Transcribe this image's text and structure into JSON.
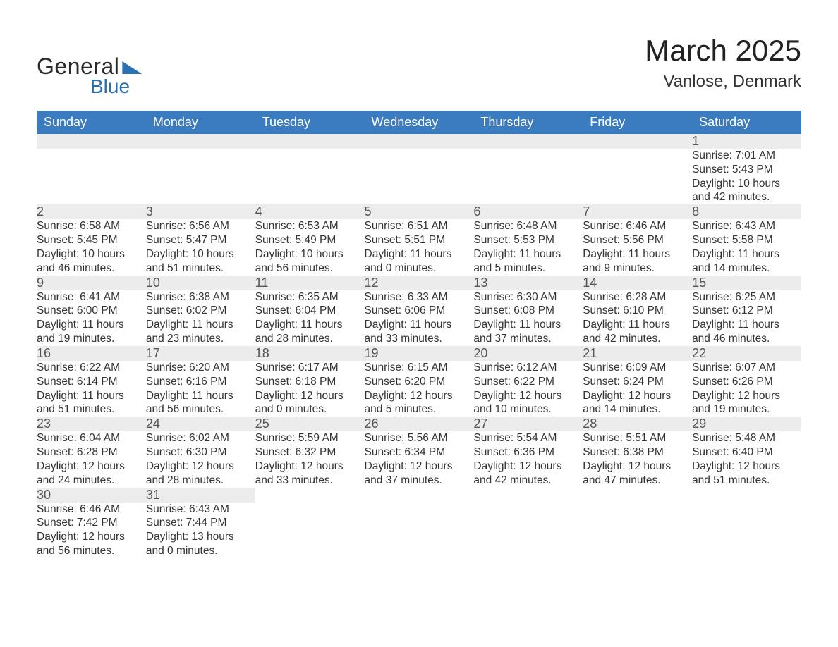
{
  "logo": {
    "word1": "General",
    "word2": "Blue"
  },
  "title": "March 2025",
  "location": "Vanlose, Denmark",
  "columns": [
    "Sunday",
    "Monday",
    "Tuesday",
    "Wednesday",
    "Thursday",
    "Friday",
    "Saturday"
  ],
  "header_bg": "#3b7bbf",
  "header_fg": "#ffffff",
  "daynum_bg": "#ececec",
  "border_color": "#3b7bbf",
  "weeks": [
    [
      null,
      null,
      null,
      null,
      null,
      null,
      {
        "n": "1",
        "sunrise": "7:01 AM",
        "sunset": "5:43 PM",
        "dayh": "10",
        "daym": "42"
      }
    ],
    [
      {
        "n": "2",
        "sunrise": "6:58 AM",
        "sunset": "5:45 PM",
        "dayh": "10",
        "daym": "46"
      },
      {
        "n": "3",
        "sunrise": "6:56 AM",
        "sunset": "5:47 PM",
        "dayh": "10",
        "daym": "51"
      },
      {
        "n": "4",
        "sunrise": "6:53 AM",
        "sunset": "5:49 PM",
        "dayh": "10",
        "daym": "56"
      },
      {
        "n": "5",
        "sunrise": "6:51 AM",
        "sunset": "5:51 PM",
        "dayh": "11",
        "daym": "0"
      },
      {
        "n": "6",
        "sunrise": "6:48 AM",
        "sunset": "5:53 PM",
        "dayh": "11",
        "daym": "5"
      },
      {
        "n": "7",
        "sunrise": "6:46 AM",
        "sunset": "5:56 PM",
        "dayh": "11",
        "daym": "9"
      },
      {
        "n": "8",
        "sunrise": "6:43 AM",
        "sunset": "5:58 PM",
        "dayh": "11",
        "daym": "14"
      }
    ],
    [
      {
        "n": "9",
        "sunrise": "6:41 AM",
        "sunset": "6:00 PM",
        "dayh": "11",
        "daym": "19"
      },
      {
        "n": "10",
        "sunrise": "6:38 AM",
        "sunset": "6:02 PM",
        "dayh": "11",
        "daym": "23"
      },
      {
        "n": "11",
        "sunrise": "6:35 AM",
        "sunset": "6:04 PM",
        "dayh": "11",
        "daym": "28"
      },
      {
        "n": "12",
        "sunrise": "6:33 AM",
        "sunset": "6:06 PM",
        "dayh": "11",
        "daym": "33"
      },
      {
        "n": "13",
        "sunrise": "6:30 AM",
        "sunset": "6:08 PM",
        "dayh": "11",
        "daym": "37"
      },
      {
        "n": "14",
        "sunrise": "6:28 AM",
        "sunset": "6:10 PM",
        "dayh": "11",
        "daym": "42"
      },
      {
        "n": "15",
        "sunrise": "6:25 AM",
        "sunset": "6:12 PM",
        "dayh": "11",
        "daym": "46"
      }
    ],
    [
      {
        "n": "16",
        "sunrise": "6:22 AM",
        "sunset": "6:14 PM",
        "dayh": "11",
        "daym": "51"
      },
      {
        "n": "17",
        "sunrise": "6:20 AM",
        "sunset": "6:16 PM",
        "dayh": "11",
        "daym": "56"
      },
      {
        "n": "18",
        "sunrise": "6:17 AM",
        "sunset": "6:18 PM",
        "dayh": "12",
        "daym": "0"
      },
      {
        "n": "19",
        "sunrise": "6:15 AM",
        "sunset": "6:20 PM",
        "dayh": "12",
        "daym": "5"
      },
      {
        "n": "20",
        "sunrise": "6:12 AM",
        "sunset": "6:22 PM",
        "dayh": "12",
        "daym": "10"
      },
      {
        "n": "21",
        "sunrise": "6:09 AM",
        "sunset": "6:24 PM",
        "dayh": "12",
        "daym": "14"
      },
      {
        "n": "22",
        "sunrise": "6:07 AM",
        "sunset": "6:26 PM",
        "dayh": "12",
        "daym": "19"
      }
    ],
    [
      {
        "n": "23",
        "sunrise": "6:04 AM",
        "sunset": "6:28 PM",
        "dayh": "12",
        "daym": "24"
      },
      {
        "n": "24",
        "sunrise": "6:02 AM",
        "sunset": "6:30 PM",
        "dayh": "12",
        "daym": "28"
      },
      {
        "n": "25",
        "sunrise": "5:59 AM",
        "sunset": "6:32 PM",
        "dayh": "12",
        "daym": "33"
      },
      {
        "n": "26",
        "sunrise": "5:56 AM",
        "sunset": "6:34 PM",
        "dayh": "12",
        "daym": "37"
      },
      {
        "n": "27",
        "sunrise": "5:54 AM",
        "sunset": "6:36 PM",
        "dayh": "12",
        "daym": "42"
      },
      {
        "n": "28",
        "sunrise": "5:51 AM",
        "sunset": "6:38 PM",
        "dayh": "12",
        "daym": "47"
      },
      {
        "n": "29",
        "sunrise": "5:48 AM",
        "sunset": "6:40 PM",
        "dayh": "12",
        "daym": "51"
      }
    ],
    [
      {
        "n": "30",
        "sunrise": "6:46 AM",
        "sunset": "7:42 PM",
        "dayh": "12",
        "daym": "56"
      },
      {
        "n": "31",
        "sunrise": "6:43 AM",
        "sunset": "7:44 PM",
        "dayh": "13",
        "daym": "0"
      },
      null,
      null,
      null,
      null,
      null
    ]
  ],
  "labels": {
    "sunrise": "Sunrise:",
    "sunset": "Sunset:",
    "daylight_prefix": "Daylight:",
    "hours_word": "hours",
    "and_word": "and",
    "minutes_word": "minutes."
  }
}
